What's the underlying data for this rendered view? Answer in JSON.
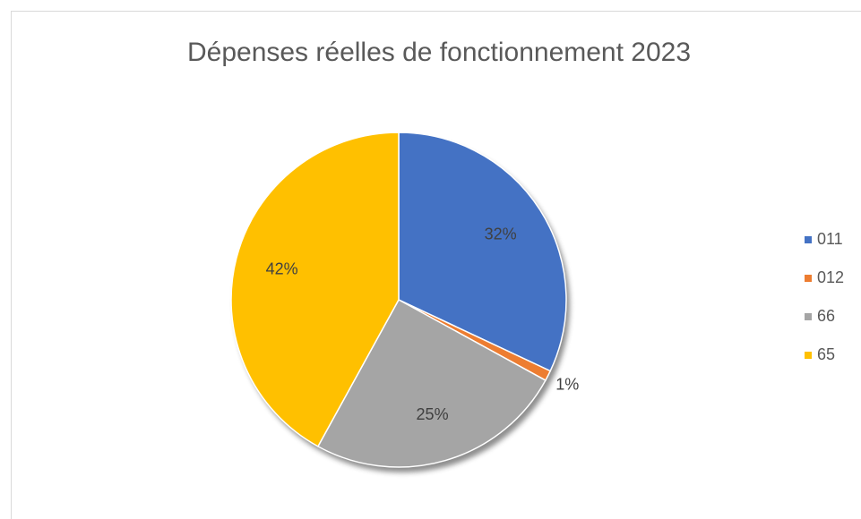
{
  "chart_data": {
    "type": "pie",
    "title": "Dépenses réelles de fonctionnement 2023",
    "categories": [
      "011",
      "012",
      "66",
      "65"
    ],
    "values": [
      32,
      1,
      25,
      42
    ],
    "value_labels": [
      "32%",
      "1%",
      "25%",
      "42%"
    ],
    "colors": [
      "#4472c4",
      "#ed7d31",
      "#a5a5a5",
      "#ffc000"
    ],
    "legend": "right"
  }
}
